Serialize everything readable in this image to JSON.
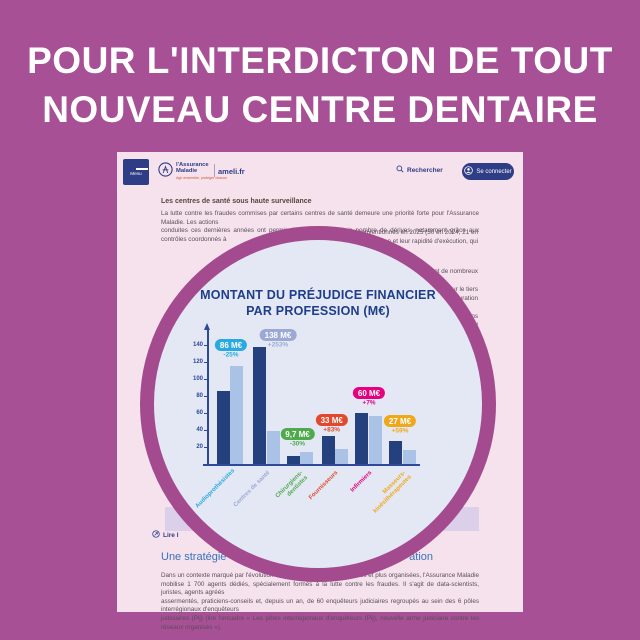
{
  "poster": {
    "title_line1": "POUR L'INTERDICTON DE TOUT",
    "title_line2": "NOUVEAU CENTRE DENTAIRE"
  },
  "header": {
    "menu_label": "Menu",
    "logo_line1": "l'Assurance",
    "logo_line2": "Maladie",
    "logo_tagline": "Agir ensemble, protéger chacun",
    "brand": "ameli.fr",
    "search_label": "Rechercher",
    "login_label": "Se connecter"
  },
  "article": {
    "section1_heading": "Les centres de santé sous haute surveillance",
    "para1_line1": "La lutte contre les fraudes commises par certains centres de santé demeure une priorité forte pour l'Assurance Maladie. Les actions",
    "para1_line2": "conduites ces dernières années ont permis d'endiguer un certain nombre de dérives, notamment grâce aux contrôles coordonnés à",
    "para1_frag3": "ont ainsi été déconventionnés en 2025 (30 en 2024, 21 en",
    "para1_frag4": "leur organisation et leur rapidité d'exécution, qui",
    "right_fragments": [
      "ement de nombreux",
      "ur le tiers",
      "ec facturation",
      "tions",
      "du",
      "ont"
    ],
    "carousel_arrow": "→",
    "read_more_fragment": "Lire l",
    "section2_heading_left": "Une stratégie",
    "section2_heading_right": "ation",
    "para2_left": "Dans un contexte marqué par l'évolution",
    "para2_right": "complexes et plus organisées, l'Assurance Maladie",
    "para2_line2": "mobilise 1 700 agents dédiés, spécialement formés à la lutte contre les fraudes. Il s'agit de data-scientists, juristes, agents agréés",
    "para2_line3": "assermentés, praticiens-conseils et, depuis un an, de 60 enquêteurs judiciaires regroupés au sein des 6 pôles interrégionaux d'enquêteurs",
    "para2_line4": "judiciaires (Pij) (lire l'encadré « Les pôles interrégionaux d'enquêteurs (Pij), nouvelle arme judiciaire contre les réseaux organisés »)."
  },
  "chart_data": {
    "type": "bar",
    "title_line1": "MONTANT DU PRÉJUDICE FINANCIER",
    "title_line2": "PAR PROFESSION (M€)",
    "categories": [
      "Audioprothésistes",
      "Centres de santé",
      "Chirurgiens-dentistes",
      "Fournisseurs",
      "Infirmiers",
      "Masseurs-kinésithérapeutes"
    ],
    "series": [
      {
        "name": "barre foncée (montant M€)",
        "values": [
          86,
          138,
          9.7,
          33,
          60,
          27
        ]
      },
      {
        "name": "barre claire (montant comparatif M€)",
        "values": [
          115,
          39,
          14,
          18,
          56,
          17
        ]
      }
    ],
    "value_labels": [
      "86 M€",
      "138 M€",
      "9,7 M€",
      "33 M€",
      "60 M€",
      "27 M€"
    ],
    "change_labels": [
      "-25%",
      "+253%",
      "-30%",
      "+83%",
      "+7%",
      "+59%"
    ],
    "label_colors": [
      "#29a9e1",
      "#9ca9d6",
      "#4faa4c",
      "#e1492d",
      "#e6007e",
      "#f0a81b"
    ],
    "bar_colors": {
      "dark": "#24417e",
      "light": "#a9c2e5"
    },
    "yticks": [
      20,
      40,
      60,
      80,
      100,
      120,
      140
    ],
    "ylim": [
      0,
      150
    ],
    "grid": false,
    "legend": "none"
  }
}
